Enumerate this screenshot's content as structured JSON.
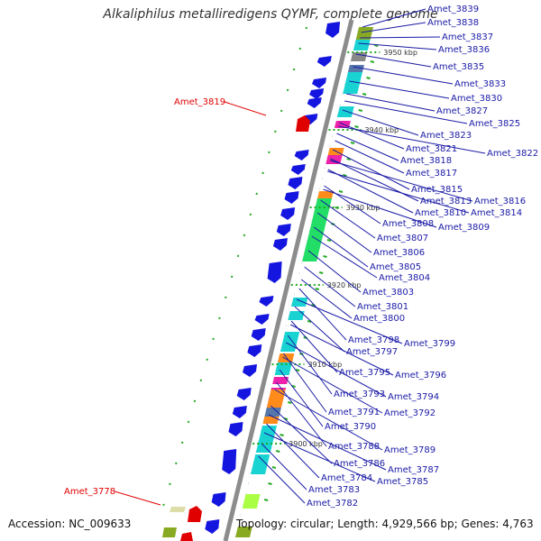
{
  "title": "Alkaliphilus metalliredigens QYMF, complete genome",
  "accession": "Accession: NC_009633",
  "summary": "Topology: circular; Length: 4,929,566 bp; Genes: 4,763",
  "colors": {
    "label": "#1a1aa6",
    "highlight": "#e00000",
    "backbone": "#8c8c8c",
    "arrow": "#1515e0",
    "cyan": "#19d3d3",
    "green": "#22dd66",
    "orange": "#ff8c1a",
    "magenta": "#ee22aa",
    "olive": "#88aa22"
  },
  "kbp_ticks": [
    {
      "label": "3950 kbp"
    },
    {
      "label": "3940 kbp"
    },
    {
      "label": "3930 kbp"
    },
    {
      "label": "3920 kbp"
    },
    {
      "label": "3910 kbp"
    },
    {
      "label": "3900 kbp"
    }
  ],
  "genes": [
    "Amet_3839",
    "Amet_3838",
    "Amet_3837",
    "Amet_3836",
    "Amet_3835",
    "Amet_3833",
    "Amet_3830",
    "Amet_3827",
    "Amet_3825",
    "Amet_3823",
    "Amet_3821",
    "Amet_3822",
    "Amet_3818",
    "Amet_3817",
    "Amet_3815",
    "Amet_3813",
    "Amet_3816",
    "Amet_3810",
    "Amet_3814",
    "Amet_3808",
    "Amet_3809",
    "Amet_3807",
    "Amet_3806",
    "Amet_3805",
    "Amet_3804",
    "Amet_3803",
    "Amet_3801",
    "Amet_3800",
    "Amet_3798",
    "Amet_3799",
    "Amet_3797",
    "Amet_3795",
    "Amet_3796",
    "Amet_3793",
    "Amet_3794",
    "Amet_3791",
    "Amet_3792",
    "Amet_3790",
    "Amet_3788",
    "Amet_3789",
    "Amet_3786",
    "Amet_3787",
    "Amet_3784",
    "Amet_3785",
    "Amet_3783",
    "Amet_3782"
  ],
  "highlight_genes": [
    "Amet_3819",
    "Amet_3778"
  ]
}
